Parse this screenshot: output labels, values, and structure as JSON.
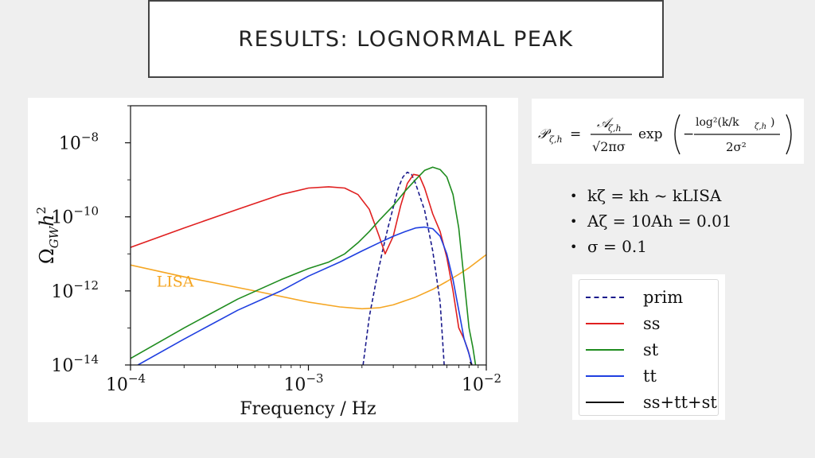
{
  "slide": {
    "title": "RESULTS: LOGNORMAL PEAK"
  },
  "formula": {
    "lhs": "𝒫",
    "lhs_sub": "ζ,h",
    "equals": "=",
    "num": "𝒜",
    "num_sub": "ζ,h",
    "den": "√2πσ",
    "exp": "exp",
    "inner_num": "log²(k/k",
    "inner_num_sub": "ζ,h",
    "inner_num_close": ")",
    "inner_den": "2σ²",
    "minus": "−"
  },
  "bullets": [
    {
      "marker": "•",
      "text": "kζ = kh ~ kLISA"
    },
    {
      "marker": "•",
      "text": "Aζ = 10Ah = 0.01"
    },
    {
      "marker": "•",
      "text": "σ =  0.1"
    }
  ],
  "colors": {
    "prim": "#1a1a8c",
    "ss": "#e02020",
    "st": "#1f8c1f",
    "tt": "#1f3fe0",
    "sum": "#111111",
    "lisa": "#f5a623"
  },
  "chart_data": {
    "type": "line",
    "xscale": "log",
    "yscale": "log",
    "xlim": [
      0.0001,
      0.01
    ],
    "ylim": [
      1e-14,
      1e-07
    ],
    "xlabel": "Frequency / Hz",
    "ylabel": "Ω_GW h²",
    "xticks": [
      {
        "value": 0.0001,
        "label": "10",
        "exp": "−4"
      },
      {
        "value": 0.001,
        "label": "10",
        "exp": "−3"
      },
      {
        "value": 0.01,
        "label": "10",
        "exp": "−2"
      }
    ],
    "yticks": [
      {
        "value": 1e-14,
        "label": "10",
        "exp": "−14"
      },
      {
        "value": 1e-12,
        "label": "10",
        "exp": "−12"
      },
      {
        "value": 1e-10,
        "label": "10",
        "exp": "−10"
      },
      {
        "value": 1e-08,
        "label": "10",
        "exp": "−8"
      }
    ],
    "annotation": {
      "text": "LISA",
      "x": 0.00014,
      "y": 1.3e-12
    },
    "series": [
      {
        "name": "LISA",
        "key": "lisa",
        "in_legend": false,
        "dash": false,
        "x": [
          0.0001,
          0.0002,
          0.0005,
          0.001,
          0.0015,
          0.002,
          0.0025,
          0.003,
          0.004,
          0.005,
          0.006,
          0.007,
          0.008,
          0.01
        ],
        "y": [
          5e-12,
          2.4e-12,
          1e-12,
          5e-13,
          3.7e-13,
          3.3e-13,
          3.5e-13,
          4.2e-13,
          6.8e-13,
          1.1e-12,
          1.8e-12,
          2.8e-12,
          4.2e-12,
          9.5e-12
        ]
      },
      {
        "name": "prim",
        "key": "prim",
        "in_legend": true,
        "dash": true,
        "x": [
          0.00203,
          0.0022,
          0.0024,
          0.0026,
          0.0028,
          0.003,
          0.0032,
          0.0034,
          0.0036,
          0.0038,
          0.004,
          0.0045,
          0.005,
          0.0055,
          0.0058
        ],
        "y": [
          1e-14,
          2e-13,
          1.8e-12,
          1.1e-11,
          5e-11,
          1.8e-10,
          6e-10,
          1.2e-09,
          1.6e-09,
          1.4e-09,
          8e-10,
          1.5e-10,
          1.2e-11,
          5e-13,
          1e-14
        ]
      },
      {
        "name": "ss",
        "key": "ss",
        "in_legend": true,
        "dash": false,
        "x": [
          0.0001,
          0.0002,
          0.0004,
          0.0007,
          0.001,
          0.0013,
          0.0016,
          0.0019,
          0.0022,
          0.0025,
          0.0027,
          0.003,
          0.0033,
          0.0036,
          0.0039,
          0.0042,
          0.0045,
          0.005,
          0.0055,
          0.006,
          0.0065,
          0.007,
          0.0075,
          0.0079,
          0.0083
        ],
        "y": [
          1.5e-11,
          5e-11,
          1.6e-10,
          4e-10,
          6e-10,
          6.5e-10,
          6e-10,
          4e-10,
          1.6e-10,
          3e-11,
          1e-11,
          3e-11,
          2e-10,
          8e-10,
          1.4e-09,
          1.3e-09,
          6e-10,
          1.2e-10,
          4e-11,
          8e-12,
          1e-12,
          1e-13,
          5e-14,
          2.5e-14,
          1e-14
        ]
      },
      {
        "name": "st",
        "key": "st",
        "in_legend": true,
        "dash": false,
        "x": [
          0.0001,
          0.0002,
          0.0004,
          0.0007,
          0.001,
          0.0013,
          0.0016,
          0.0019,
          0.0022,
          0.0025,
          0.003,
          0.0035,
          0.004,
          0.0045,
          0.005,
          0.0055,
          0.006,
          0.0065,
          0.007,
          0.0075,
          0.008,
          0.0084,
          0.0087
        ],
        "y": [
          1.5e-14,
          1e-13,
          6e-13,
          2e-12,
          4e-12,
          6e-12,
          1e-11,
          2e-11,
          4e-11,
          8e-11,
          2e-10,
          5e-10,
          1e-09,
          1.8e-09,
          2.2e-09,
          1.9e-09,
          1.2e-09,
          4e-10,
          5e-11,
          2e-12,
          1e-13,
          3e-14,
          1e-14
        ]
      },
      {
        "name": "tt",
        "key": "tt",
        "in_legend": true,
        "dash": false,
        "x": [
          0.00011,
          0.0002,
          0.0004,
          0.0007,
          0.001,
          0.0015,
          0.002,
          0.0025,
          0.003,
          0.0035,
          0.004,
          0.0045,
          0.005,
          0.0055,
          0.006,
          0.0065,
          0.007,
          0.0075,
          0.008,
          0.0083
        ],
        "y": [
          1e-14,
          5e-14,
          3e-13,
          1e-12,
          2.5e-12,
          6e-12,
          1.2e-11,
          2e-11,
          3e-11,
          4e-11,
          5e-11,
          5.3e-11,
          4.8e-11,
          3e-11,
          1e-11,
          2e-12,
          3e-13,
          5e-14,
          2e-14,
          1e-14
        ]
      },
      {
        "name": "ss+tt+st",
        "key": "sum",
        "in_legend": true,
        "dash": false,
        "x": [
          0.0081,
          0.0083
        ],
        "y": [
          1.2e-14,
          1e-14
        ]
      }
    ]
  }
}
